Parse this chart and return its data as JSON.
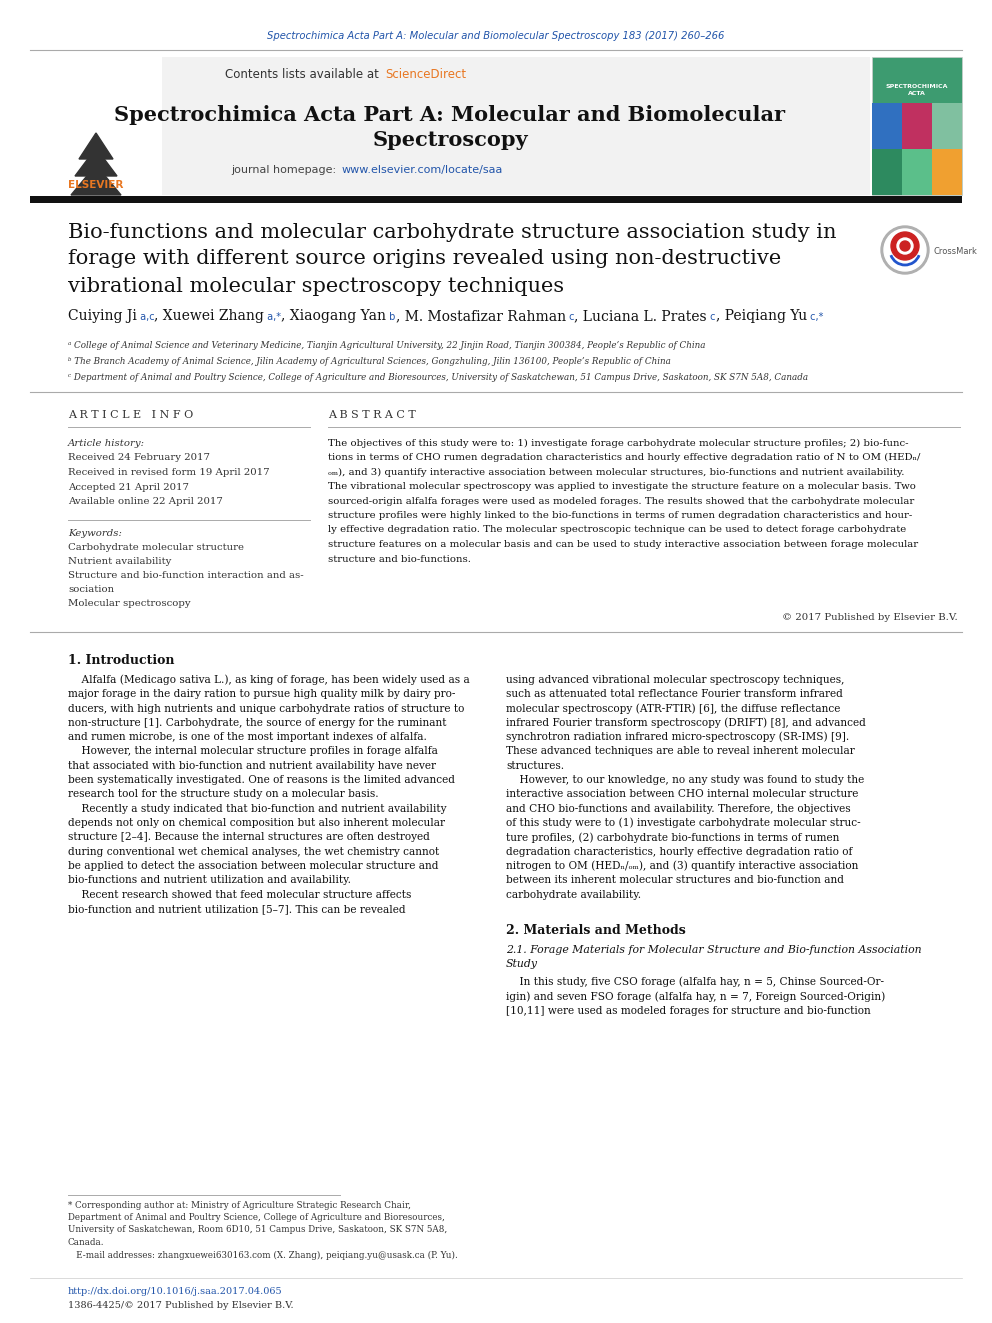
{
  "page_bg": "#ffffff",
  "top_citation": "Spectrochimica Acta Part A: Molecular and Biomolecular Spectroscopy 183 (2017) 260–266",
  "top_citation_color": "#2255aa",
  "header_bg": "#f0f0f0",
  "header_contents": "Contents lists available at",
  "header_sciencedirect": "ScienceDirect",
  "header_sciencedirect_color": "#e87722",
  "journal_title_line1": "Spectrochimica Acta Part A: Molecular and Biomolecular",
  "journal_title_line2": "Spectroscopy",
  "journal_homepage_label": "journal homepage:",
  "journal_homepage_url": "www.elsevier.com/locate/saa",
  "journal_homepage_url_color": "#2255aa",
  "article_info_header": "A R T I C L E   I N F O",
  "abstract_header": "A B S T R A C T",
  "article_history_label": "Article history:",
  "received": "Received 24 February 2017",
  "received_revised": "Received in revised form 19 April 2017",
  "accepted": "Accepted 21 April 2017",
  "available": "Available online 22 April 2017",
  "keywords_label": "Keywords:",
  "keyword1": "Carbohydrate molecular structure",
  "keyword2": "Nutrient availability",
  "keyword3a": "Structure and bio-function interaction and as-",
  "keyword3b": "sociation",
  "keyword4": "Molecular spectroscopy",
  "copyright": "© 2017 Published by Elsevier B.V.",
  "intro_header": "1. Introduction",
  "materials_header": "2. Materials and Methods",
  "materials_sub1": "2.1. Forage Materials for Molecular Structure and Bio-function Association",
  "materials_sub2": "Study",
  "doi_text": "http://dx.doi.org/10.1016/j.saa.2017.04.065",
  "issn_text": "1386-4425/© 2017 Published by Elsevier B.V.",
  "affil_a": "ᵃ College of Animal Science and Veterinary Medicine, Tianjin Agricultural University, 22 Jinjin Road, Tianjin 300384, People’s Republic of China",
  "affil_b": "ᵇ The Branch Academy of Animal Science, Jilin Academy of Agricultural Sciences, Gongzhuling, Jilin 136100, People’s Republic of China",
  "affil_c": "ᶜ Department of Animal and Poultry Science, College of Agriculture and Bioresources, University of Saskatchewan, 51 Campus Drive, Saskatoon, SK S7N 5A8, Canada",
  "abstract_lines": [
    "The objectives of this study were to: 1) investigate forage carbohydrate molecular structure profiles; 2) bio-func-",
    "tions in terms of CHO rumen degradation characteristics and hourly effective degradation ratio of N to OM (HEDₙ/",
    "ₒₘ), and 3) quantify interactive association between molecular structures, bio-functions and nutrient availability.",
    "The vibrational molecular spectroscopy was applied to investigate the structure feature on a molecular basis. Two",
    "sourced-origin alfalfa forages were used as modeled forages. The results showed that the carbohydrate molecular",
    "structure profiles were highly linked to the bio-functions in terms of rumen degradation characteristics and hour-",
    "ly effective degradation ratio. The molecular spectroscopic technique can be used to detect forage carbohydrate",
    "structure features on a molecular basis and can be used to study interactive association between forage molecular",
    "structure and bio-functions."
  ],
  "intro_col1_lines": [
    "    Alfalfa (Medicago sativa L.), as king of forage, has been widely used as a",
    "major forage in the dairy ration to pursue high quality milk by dairy pro-",
    "ducers, with high nutrients and unique carbohydrate ratios of structure to",
    "non-structure [1]. Carbohydrate, the source of energy for the ruminant",
    "and rumen microbe, is one of the most important indexes of alfalfa.",
    "    However, the internal molecular structure profiles in forage alfalfa",
    "that associated with bio-function and nutrient availability have never",
    "been systematically investigated. One of reasons is the limited advanced",
    "research tool for the structure study on a molecular basis.",
    "    Recently a study indicated that bio-function and nutrient availability",
    "depends not only on chemical composition but also inherent molecular",
    "structure [2–4]. Because the internal structures are often destroyed",
    "during conventional wet chemical analyses, the wet chemistry cannot",
    "be applied to detect the association between molecular structure and",
    "bio-functions and nutrient utilization and availability.",
    "    Recent research showed that feed molecular structure affects",
    "bio-function and nutrient utilization [5–7]. This can be revealed"
  ],
  "intro_col2_lines": [
    "using advanced vibrational molecular spectroscopy techniques,",
    "such as attenuated total reflectance Fourier transform infrared",
    "molecular spectroscopy (ATR-FTIR) [6], the diffuse reflectance",
    "infrared Fourier transform spectroscopy (DRIFT) [8], and advanced",
    "synchrotron radiation infrared micro-spectroscopy (SR-IMS) [9].",
    "These advanced techniques are able to reveal inherent molecular",
    "structures.",
    "    However, to our knowledge, no any study was found to study the",
    "interactive association between CHO internal molecular structure",
    "and CHO bio-functions and availability. Therefore, the objectives",
    "of this study were to (1) investigate carbohydrate molecular struc-",
    "ture profiles, (2) carbohydrate bio-functions in terms of rumen",
    "degradation characteristics, hourly effective degradation ratio of",
    "nitrogen to OM (HEDₙ/ₒₘ), and (3) quantify interactive association",
    "between its inherent molecular structures and bio-function and",
    "carbohydrate availability."
  ],
  "mat_lines": [
    "    In this study, five CSO forage (alfalfa hay, n = 5, Chinse Sourced-Or-",
    "igin) and seven FSO forage (alfalfa hay, n = 7, Foreign Sourced-Origin)",
    "[10,11] were used as modeled forages for structure and bio-function"
  ],
  "footnote_lines": [
    "* Corresponding author at: Ministry of Agriculture Strategic Research Chair,",
    "Department of Animal and Poultry Science, College of Agriculture and Bioresources,",
    "University of Saskatchewan, Room 6D10, 51 Campus Drive, Saskatoon, SK S7N 5A8,",
    "Canada.",
    "   E-mail addresses: zhangxuewei630163.com (X. Zhang), peiqiang.yu@usask.ca (P. Yu)."
  ]
}
